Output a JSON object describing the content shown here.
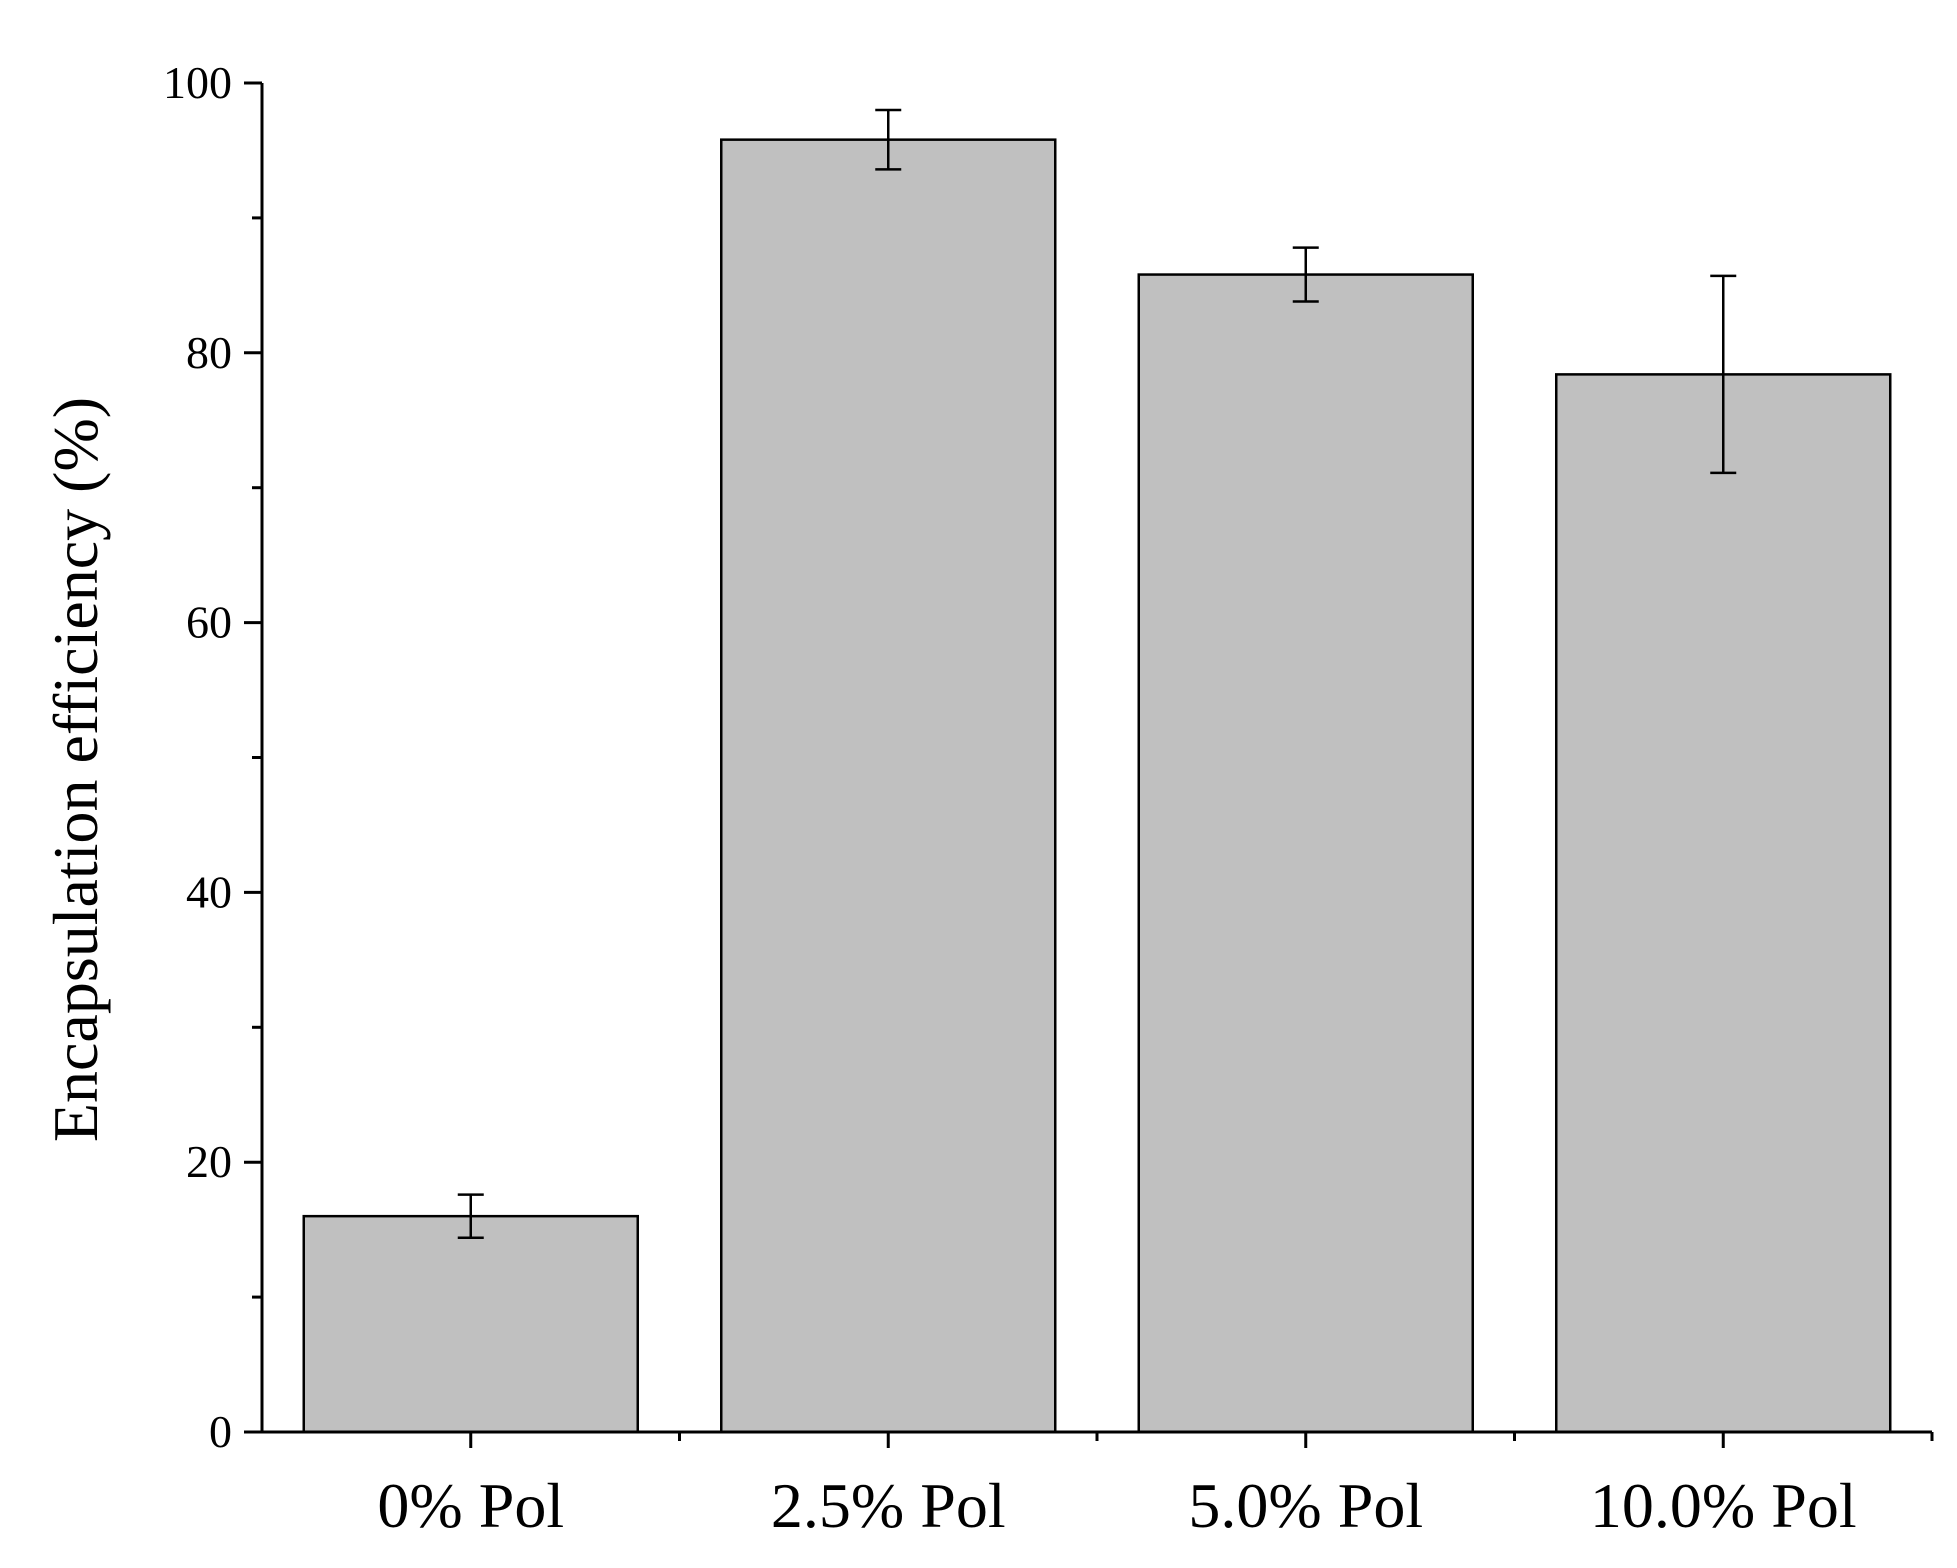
{
  "chart_data": {
    "type": "bar",
    "title": "",
    "xlabel": "",
    "ylabel": "Encapsulation efficiency (%)",
    "categories": [
      "0% Pol",
      "2.5% Pol",
      "5.0% Pol",
      "10.0% Pol"
    ],
    "values": [
      16.0,
      95.8,
      85.8,
      78.4
    ],
    "errors": [
      1.6,
      2.2,
      2.0,
      7.3
    ],
    "ylim": [
      0,
      100
    ],
    "yticks": [
      0,
      20,
      40,
      60,
      80,
      100
    ],
    "yticks_minor": [
      10,
      30,
      50,
      70,
      90
    ],
    "grid": false,
    "legend": "none",
    "bar_color": "#c0c0c0",
    "edge_color": "#000000"
  }
}
